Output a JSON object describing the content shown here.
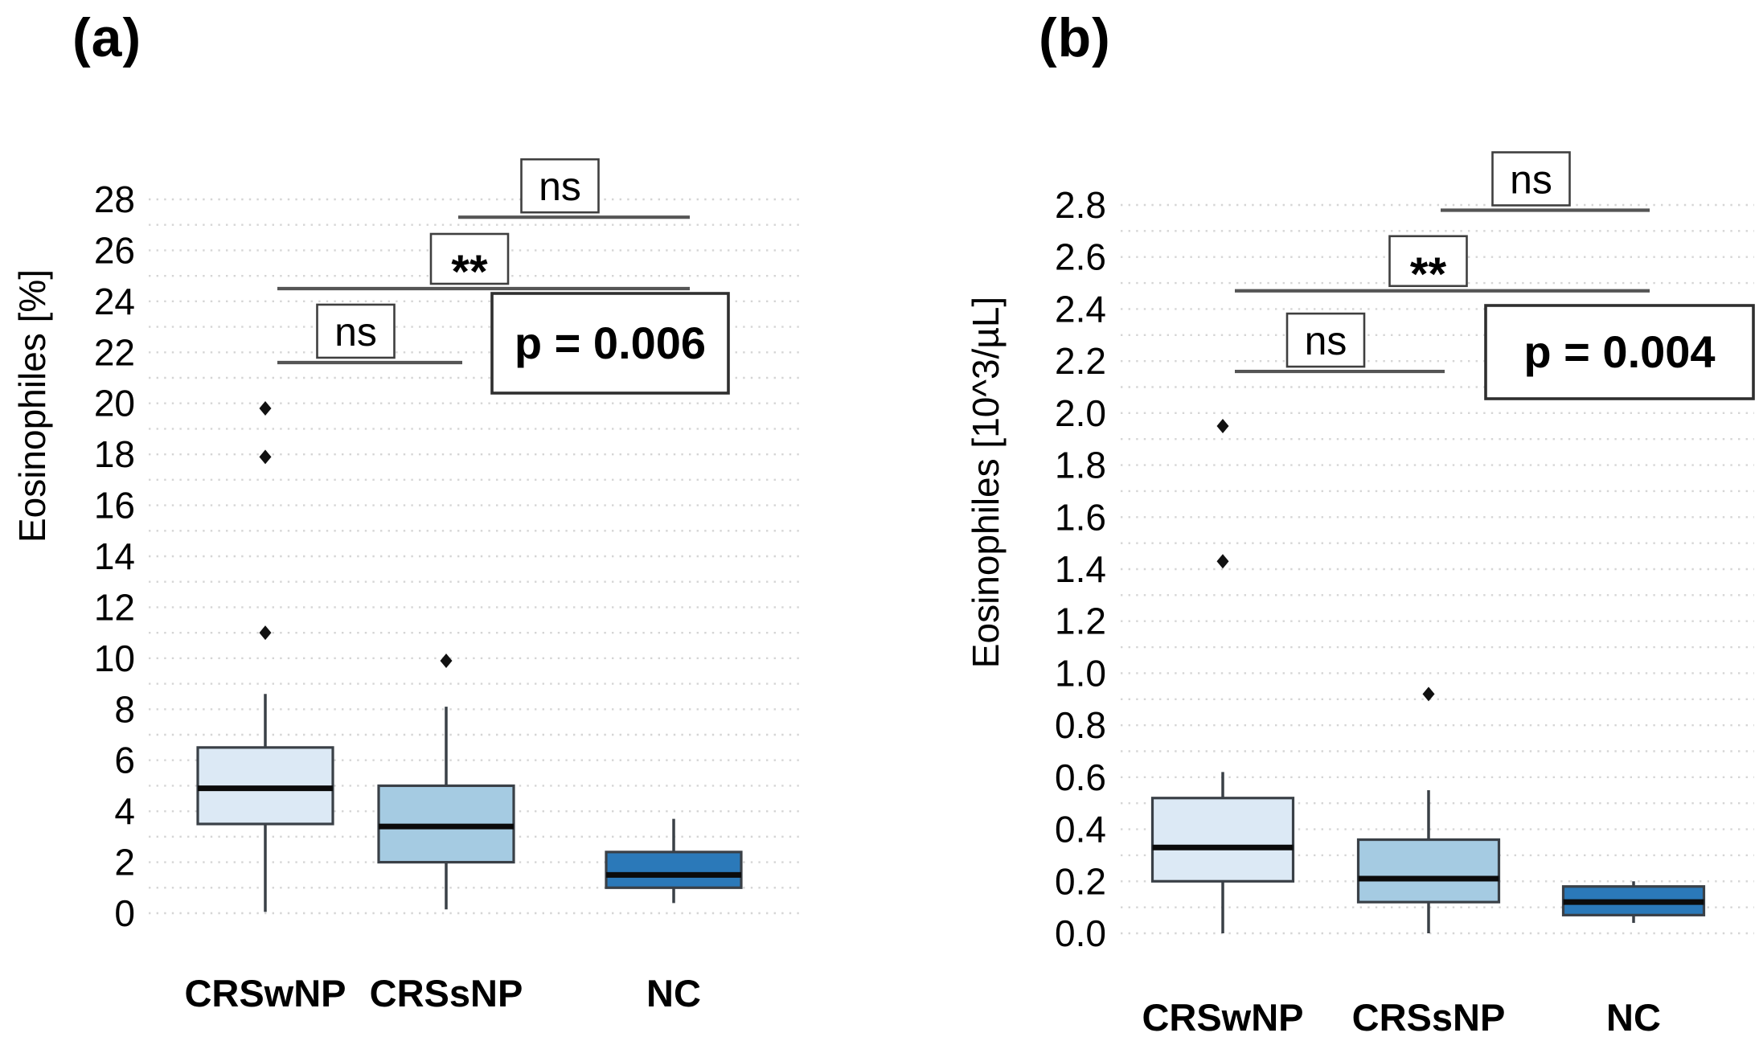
{
  "style": {
    "box_fills": [
      "#dce9f5",
      "#a5cbe2",
      "#2b79b9"
    ],
    "box_border": "#3a4047",
    "median_color": "#0b0b0b",
    "whisker_color": "#3a4047",
    "grid_color": "#d5d5d5",
    "bracket_color": "#555555",
    "annotation_box_border": "#3f3f3f",
    "outlier_color": "#111111",
    "text_color": "#000000"
  },
  "chart_data": [
    {
      "type": "box",
      "title": "(a)",
      "ylabel": "Eosinophiles [%]",
      "xlabel": "",
      "ylim": [
        0,
        28
      ],
      "ytick_step": 2,
      "grid_step": 1,
      "tick_decimals": 0,
      "grid": "dotted",
      "legend": false,
      "categories": [
        "CRSwNP",
        "CRSsNP",
        "NC"
      ],
      "series": [
        {
          "name": "CRSwNP",
          "whisker_low": 0.05,
          "q1": 3.5,
          "median": 4.9,
          "q3": 6.5,
          "whisker_high": 8.6,
          "outliers": [
            11.0,
            17.9,
            19.8
          ]
        },
        {
          "name": "CRSsNP",
          "whisker_low": 0.15,
          "q1": 2.0,
          "median": 3.4,
          "q3": 5.0,
          "whisker_high": 8.1,
          "outliers": [
            9.9
          ]
        },
        {
          "name": "NC",
          "whisker_low": 0.4,
          "q1": 1.0,
          "median": 1.5,
          "q3": 2.4,
          "whisker_high": 3.7,
          "outliers": []
        }
      ],
      "significance": [
        {
          "label": "ns",
          "from": "CRSsNP",
          "to": "NC",
          "y": 27.3
        },
        {
          "label": "**",
          "from": "CRSwNP",
          "to": "NC",
          "y": 24.5
        },
        {
          "label": "ns",
          "from": "CRSwNP",
          "to": "CRSsNP",
          "y": 21.6
        }
      ],
      "p_value_label": "p = 0.006"
    },
    {
      "type": "box",
      "title": "(b)",
      "ylabel": "Eosinophiles [10^3/µL]",
      "xlabel": "",
      "ylim": [
        0.0,
        2.8
      ],
      "ytick_step": 0.2,
      "grid_step": 0.1,
      "tick_decimals": 1,
      "grid": "dotted",
      "legend": false,
      "categories": [
        "CRSwNP",
        "CRSsNP",
        "NC"
      ],
      "series": [
        {
          "name": "CRSwNP",
          "whisker_low": 0.0,
          "q1": 0.2,
          "median": 0.33,
          "q3": 0.52,
          "whisker_high": 0.62,
          "outliers": [
            1.43,
            1.95
          ]
        },
        {
          "name": "CRSsNP",
          "whisker_low": 0.0,
          "q1": 0.12,
          "median": 0.21,
          "q3": 0.36,
          "whisker_high": 0.55,
          "outliers": [
            0.92
          ]
        },
        {
          "name": "NC",
          "whisker_low": 0.04,
          "q1": 0.07,
          "median": 0.12,
          "q3": 0.18,
          "whisker_high": 0.2,
          "outliers": []
        }
      ],
      "significance": [
        {
          "label": "ns",
          "from": "CRSsNP",
          "to": "NC",
          "y": 2.78
        },
        {
          "label": "**",
          "from": "CRSwNP",
          "to": "NC",
          "y": 2.47
        },
        {
          "label": "ns",
          "from": "CRSwNP",
          "to": "CRSsNP",
          "y": 2.16
        }
      ],
      "p_value_label": "p = 0.004"
    }
  ]
}
